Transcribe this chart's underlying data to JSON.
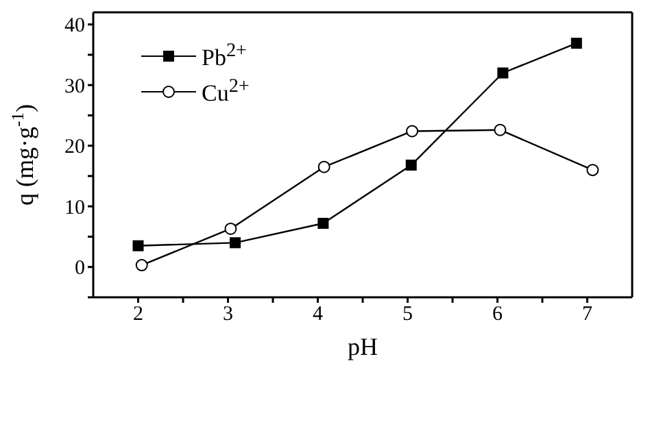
{
  "chart_data": {
    "type": "line",
    "xlabel": "pH",
    "ylabel": "q (mg·g$^{-1}$)",
    "xlim": [
      1.5,
      7.5
    ],
    "xticks": [
      2,
      {
        "value": 2.5,
        "label": null
      },
      3,
      {
        "value": 3.5,
        "label": null
      },
      4,
      {
        "value": 4.5,
        "label": null
      },
      5,
      {
        "value": 5.5,
        "label": null
      },
      6,
      {
        "value": 6.5,
        "label": null
      },
      7
    ],
    "ylim": [
      -5,
      42
    ],
    "yticks": [
      {
        "value": -5,
        "label": null
      },
      0,
      {
        "value": 5,
        "label": null
      },
      10,
      {
        "value": 15,
        "label": null
      },
      20,
      {
        "value": 25,
        "label": null
      },
      30,
      {
        "value": 35,
        "label": null
      },
      40
    ],
    "legend": "top left",
    "line_style": "solid",
    "series": [
      {
        "name": "Pb$^{2+}$",
        "color": "#000000",
        "marker": "square",
        "x": [
          2.0,
          3.08,
          4.06,
          5.04,
          6.06,
          6.88
        ],
        "values": [
          3.5,
          4.0,
          7.2,
          16.8,
          32.0,
          36.9
        ]
      },
      {
        "name": "Cu$^{2+}$",
        "color": "#000000",
        "marker": "circle",
        "x": [
          2.04,
          3.03,
          4.07,
          5.05,
          6.03,
          7.06
        ],
        "values": [
          0.3,
          6.3,
          16.5,
          22.4,
          22.6,
          16.0
        ]
      }
    ]
  }
}
